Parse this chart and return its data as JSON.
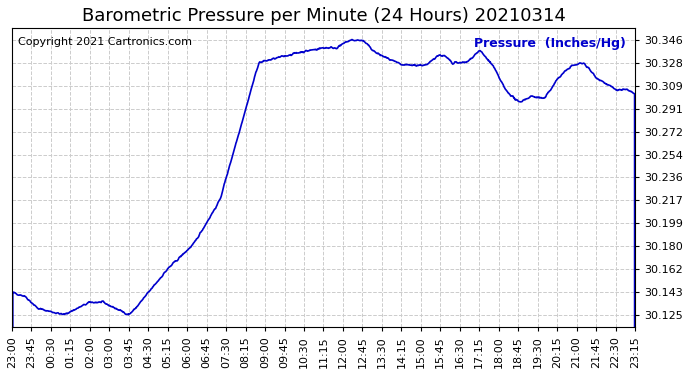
{
  "title": "Barometric Pressure per Minute (24 Hours) 20210314",
  "copyright": "Copyright 2021 Cartronics.com",
  "ylabel": "Pressure  (Inches/Hg)",
  "line_color": "#0000cc",
  "background_color": "#ffffff",
  "grid_color": "#cccccc",
  "title_color": "#000000",
  "copyright_color": "#000000",
  "ylabel_color": "#0000cc",
  "yticks": [
    30.125,
    30.143,
    30.162,
    30.18,
    30.199,
    30.217,
    30.236,
    30.254,
    30.272,
    30.291,
    30.309,
    30.328,
    30.346
  ],
  "ylim": [
    30.115,
    30.356
  ],
  "xtick_labels": [
    "23:00",
    "23:45",
    "00:30",
    "01:15",
    "02:00",
    "03:00",
    "03:45",
    "04:30",
    "05:15",
    "06:00",
    "06:45",
    "07:30",
    "08:15",
    "09:00",
    "09:45",
    "10:30",
    "11:15",
    "12:00",
    "12:45",
    "13:30",
    "14:15",
    "15:00",
    "15:45",
    "16:30",
    "17:15",
    "18:00",
    "18:45",
    "19:30",
    "20:15",
    "21:00",
    "21:45",
    "22:30",
    "23:15"
  ],
  "title_fontsize": 13,
  "axis_fontsize": 8,
  "ylabel_fontsize": 9,
  "copyright_fontsize": 8,
  "line_width": 1.2
}
